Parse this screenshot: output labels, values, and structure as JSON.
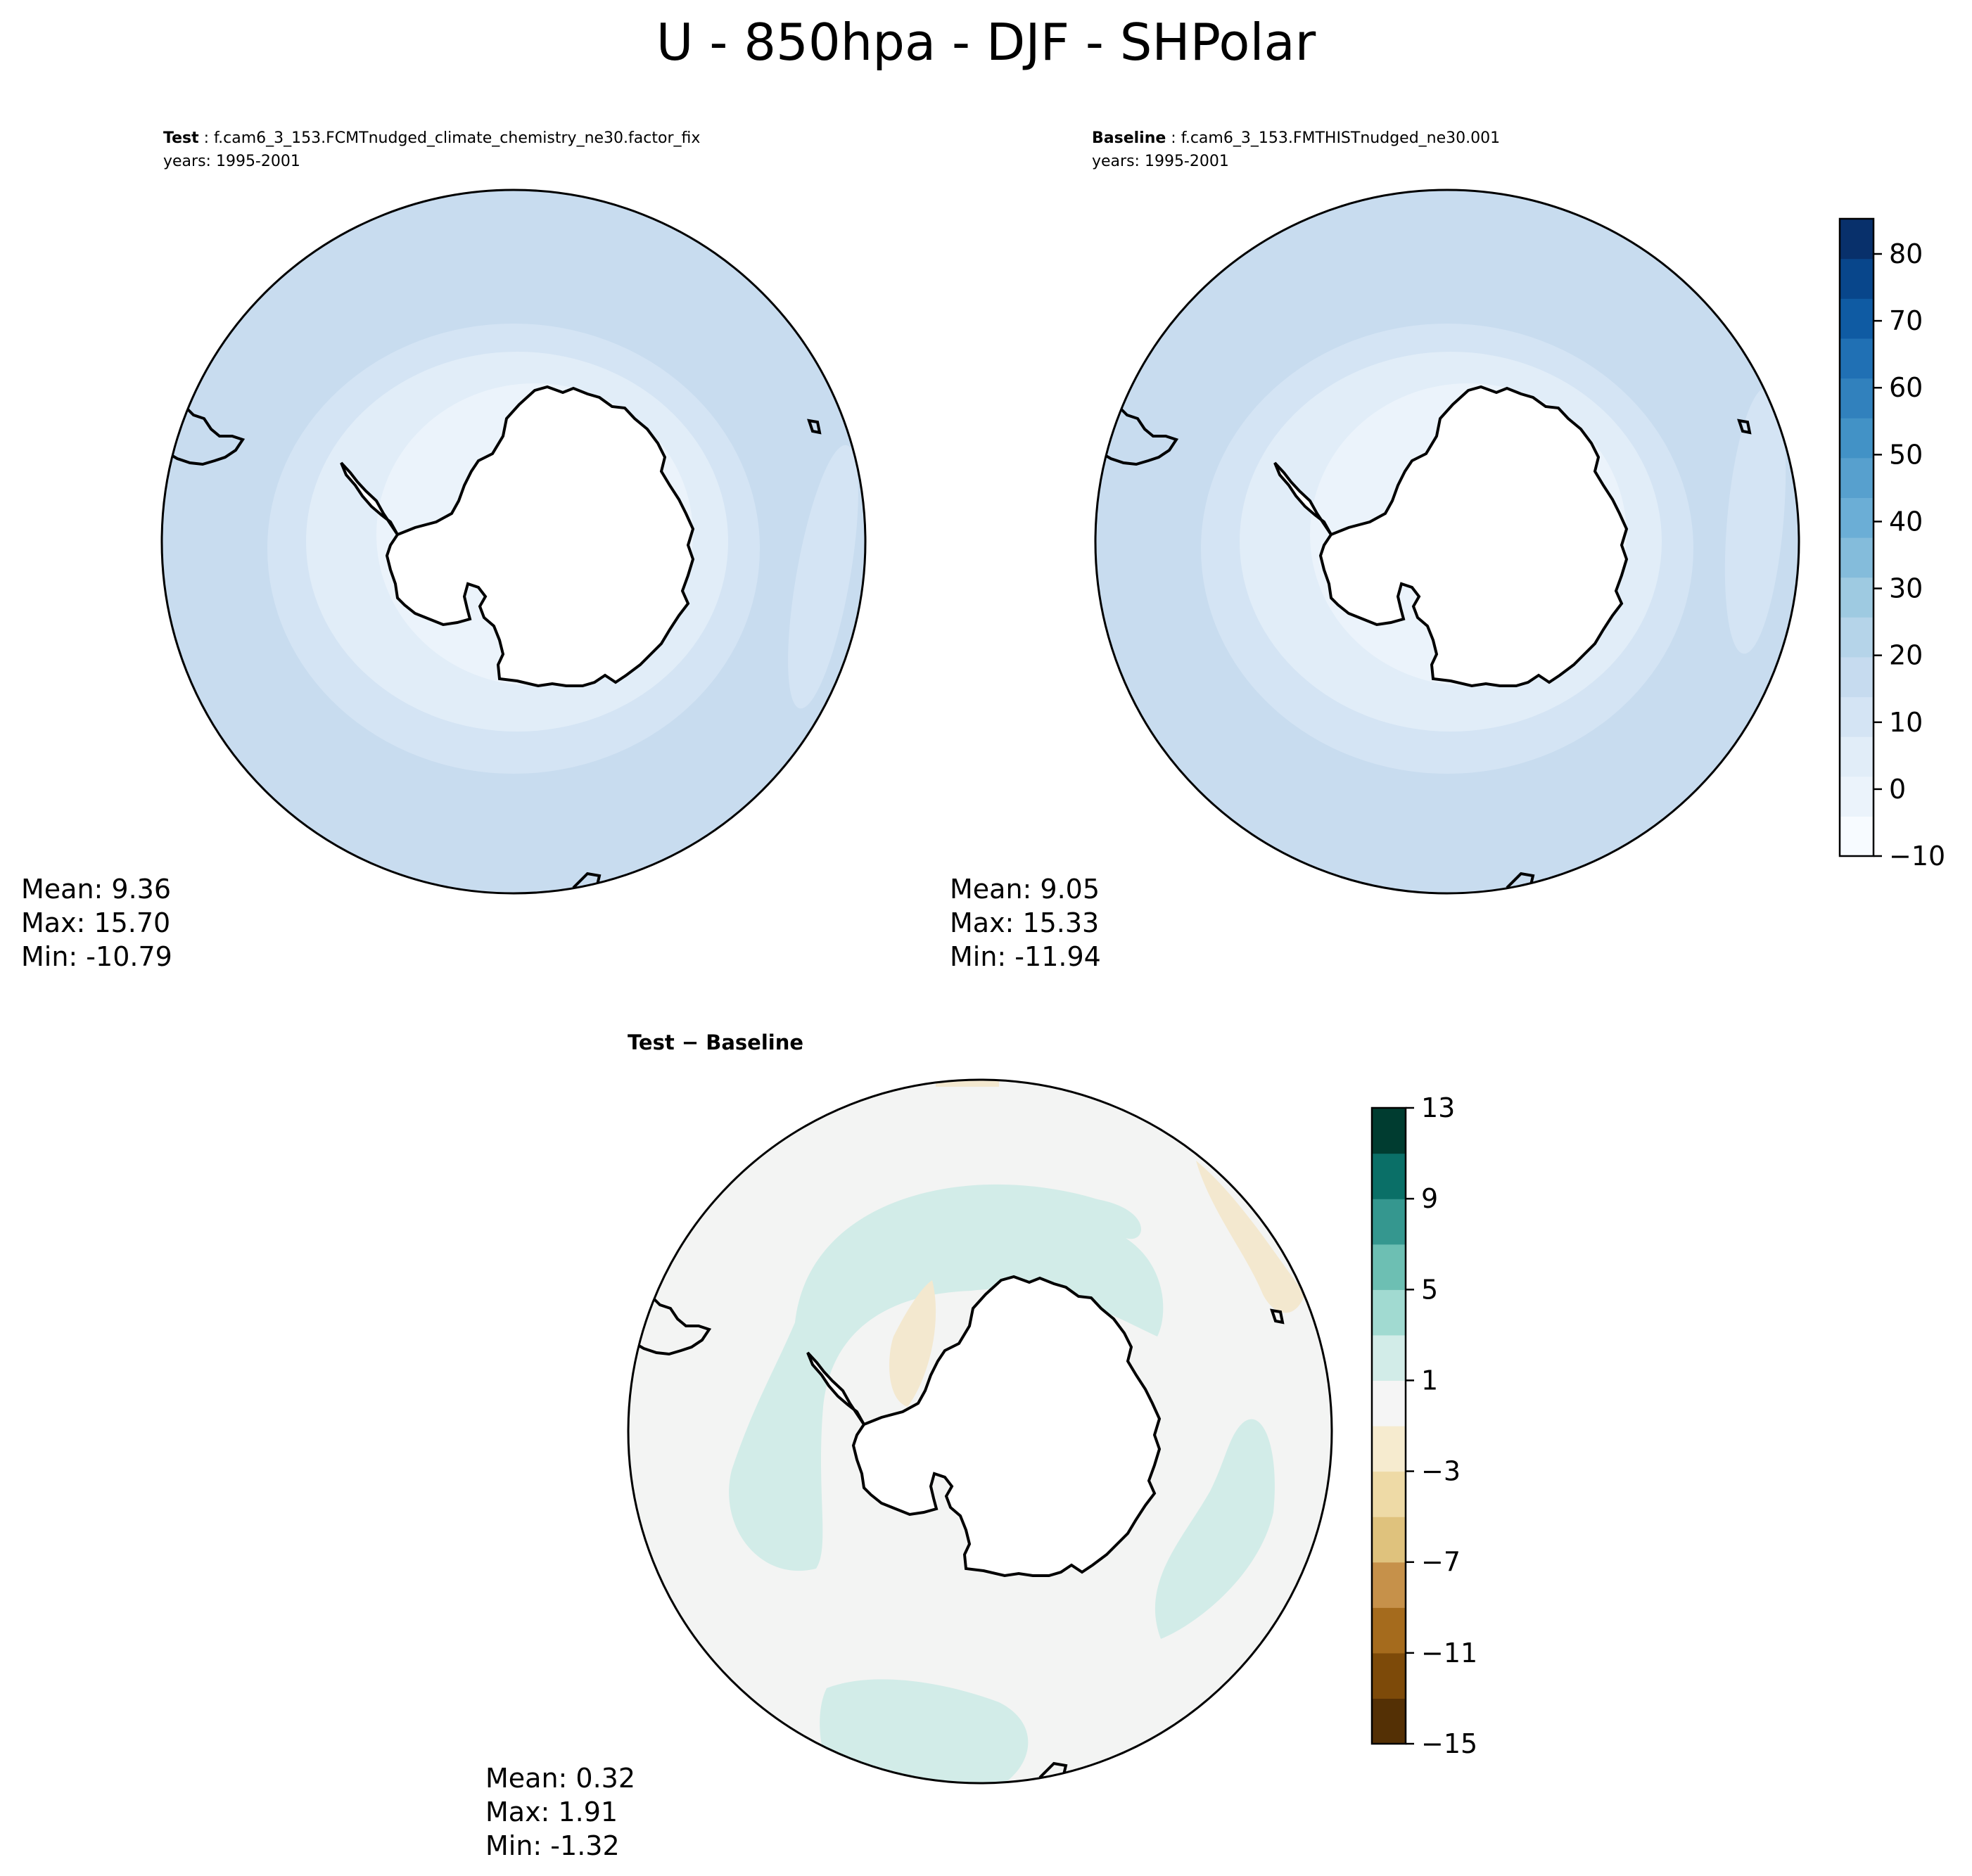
{
  "title": "U - 850hpa - DJF - SHPolar",
  "panels": {
    "test": {
      "label": "Test",
      "case_name": "f.cam6_3_153.FCMTnudged_climate_chemistry_ne30.factor_fix",
      "years": "years: 1995-2001",
      "stats": {
        "mean": "Mean:  9.36",
        "max": "Max: 15.70",
        "min": "Min: -10.79"
      }
    },
    "baseline": {
      "label": "Baseline",
      "case_name": "f.cam6_3_153.FMTHISTnudged_ne30.001",
      "years": "years: 1995-2001",
      "stats": {
        "mean": "Mean:  9.05",
        "max": "Max: 15.33",
        "min": "Min: -11.94"
      }
    },
    "diff": {
      "label": "Test − Baseline",
      "stats": {
        "mean": "Mean:  0.32",
        "max": "Max:  1.91",
        "min": "Min: -1.32"
      }
    }
  },
  "colorbars": {
    "main": {
      "ticks": [
        "80",
        "70",
        "60",
        "50",
        "40",
        "30",
        "20",
        "10",
        "0",
        "−10"
      ],
      "colors": [
        "#f7fbff",
        "#ebf3fb",
        "#e1edf8",
        "#d4e4f4",
        "#c6dbef",
        "#b5d4e9",
        "#9ecae1",
        "#84bcdb",
        "#6baed6",
        "#57a0ce",
        "#4292c6",
        "#3181bd",
        "#2070b4",
        "#0f5ba3",
        "#08468b",
        "#08306b"
      ]
    },
    "diff": {
      "ticks": [
        "13",
        "9",
        "5",
        "1",
        "−3",
        "−7",
        "−11",
        "−15"
      ],
      "colors": [
        "#543005",
        "#7d4a09",
        "#a56b1d",
        "#c6914a",
        "#dfc27d",
        "#eedaa6",
        "#f6ebcf",
        "#f5f5f5",
        "#d2ece8",
        "#a1dad1",
        "#6dbfb3",
        "#35978f",
        "#0a6f67",
        "#003c30"
      ]
    }
  },
  "map_colors": {
    "outer": "#c8dcef",
    "band_mid": "#d4e4f4",
    "band_inner": "#e1edf8",
    "inner_light": "#ebf3fb",
    "diff_bg": "#f3f4f3",
    "diff_pos": "#d2ece8",
    "diff_neg": "#f3e8cf"
  }
}
